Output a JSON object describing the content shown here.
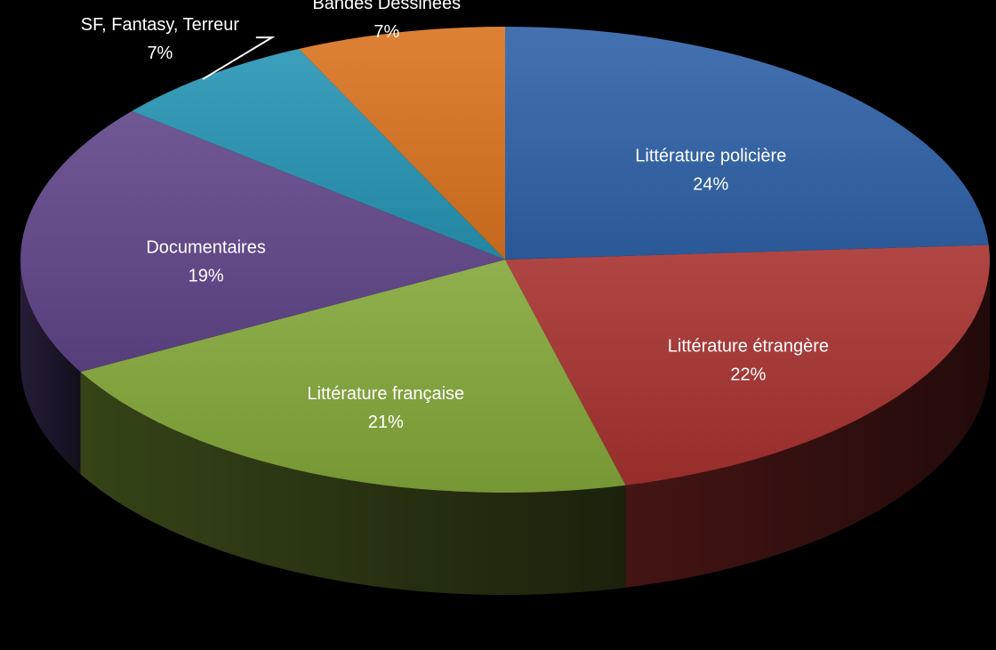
{
  "chart_data": {
    "type": "pie",
    "style": "3d-exploded-perspective",
    "title": "",
    "start_angle_deg": 0,
    "direction": "clockwise",
    "slices": [
      {
        "name": "Littérature policière",
        "value": 24,
        "label": "Littérature policière",
        "pct_label": "24%",
        "color": "#2f62a8"
      },
      {
        "name": "Littérature étrangère",
        "value": 22,
        "label": "Littérature étrangère",
        "pct_label": "22%",
        "color": "#a83230"
      },
      {
        "name": "Littérature française",
        "value": 21,
        "label": "Littérature française",
        "pct_label": "21%",
        "color": "#84a73a"
      },
      {
        "name": "Documentaires",
        "value": 19,
        "label": "Documentaires",
        "pct_label": "19%",
        "color": "#604589"
      },
      {
        "name": "SF, Fantasy, Terreur",
        "value": 7,
        "label": "SF, Fantasy, Terreur",
        "pct_label": "7%",
        "color": "#2694b3"
      },
      {
        "name": "Bandes Dessinées",
        "value": 7,
        "label": "Bandes Dessinées",
        "pct_label": "7%",
        "color": "#d9731f"
      }
    ],
    "legend": "none",
    "label_color": "#ffffff"
  }
}
